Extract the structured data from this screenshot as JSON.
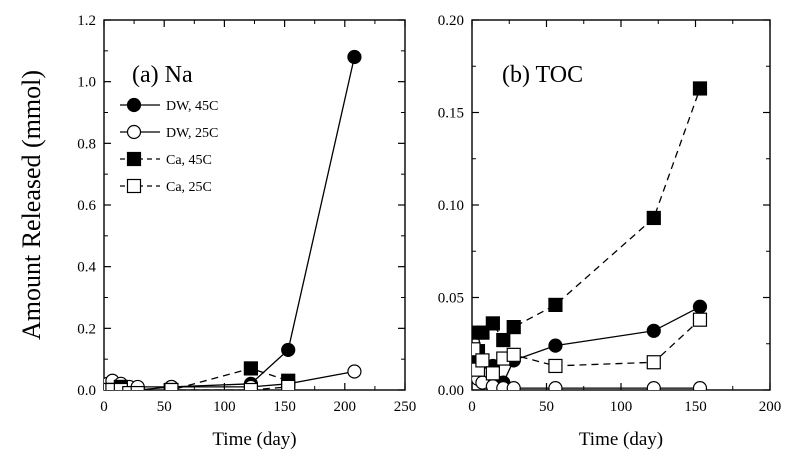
{
  "figure": {
    "ylabel": "Amount Released (mmol)"
  },
  "chart_data": [
    {
      "type": "line",
      "panel_label": "(a) Na",
      "xlabel": "Time (day)",
      "ylabel": "Amount Released (mmol)",
      "xlim": [
        0,
        250
      ],
      "ylim": [
        0,
        1.2
      ],
      "xticks": [
        0,
        50,
        100,
        150,
        200,
        250
      ],
      "yticks": [
        0.0,
        0.2,
        0.4,
        0.6,
        0.8,
        1.0,
        1.2
      ],
      "xtick_labels": [
        "0",
        "50",
        "100",
        "150",
        "200",
        "250"
      ],
      "ytick_labels": [
        "0.0",
        "0.2",
        "0.4",
        "0.6",
        "0.8",
        "1.0",
        "1.2"
      ],
      "legend_position": "upper-left",
      "series": [
        {
          "name": "DW, 45C",
          "marker": "filled-circle",
          "line": "solid",
          "x": [
            3,
            7,
            14,
            21,
            28,
            56,
            122,
            153,
            208
          ],
          "y": [
            0.01,
            0.01,
            0.01,
            0.0,
            0.0,
            0.01,
            0.02,
            0.13,
            1.08
          ]
        },
        {
          "name": "DW, 25C",
          "marker": "open-circle",
          "line": "solid",
          "x": [
            3,
            7,
            14,
            21,
            28,
            56,
            122,
            153,
            208
          ],
          "y": [
            0.02,
            0.03,
            0.02,
            0.01,
            0.01,
            0.01,
            0.01,
            0.02,
            0.06
          ]
        },
        {
          "name": "Ca, 45C",
          "marker": "filled-square",
          "line": "dashed",
          "x": [
            3,
            7,
            14,
            21,
            28,
            56,
            122,
            153
          ],
          "y": [
            0.0,
            0.0,
            0.01,
            -0.01,
            -0.01,
            0.0,
            0.07,
            0.03
          ]
        },
        {
          "name": "Ca, 25C",
          "marker": "open-square",
          "line": "dashed",
          "x": [
            3,
            7,
            14,
            21,
            28,
            56,
            122,
            153
          ],
          "y": [
            0.0,
            0.0,
            0.0,
            -0.01,
            -0.01,
            0.0,
            0.0,
            0.01
          ]
        }
      ]
    },
    {
      "type": "line",
      "panel_label": "(b) TOC",
      "xlabel": "Time (day)",
      "xlim": [
        0,
        200
      ],
      "ylim": [
        0,
        0.2
      ],
      "xticks": [
        0,
        50,
        100,
        150,
        200
      ],
      "yticks": [
        0.0,
        0.05,
        0.1,
        0.15,
        0.2
      ],
      "xtick_labels": [
        "0",
        "50",
        "100",
        "150",
        "200"
      ],
      "ytick_labels": [
        "0.00",
        "0.05",
        "0.10",
        "0.15",
        "0.20"
      ],
      "series": [
        {
          "name": "DW, 45C",
          "marker": "filled-circle",
          "line": "solid",
          "x": [
            1,
            4,
            7,
            14,
            21,
            28,
            56,
            122,
            153
          ],
          "y": [
            0.031,
            0.031,
            0.015,
            0.013,
            0.004,
            0.016,
            0.024,
            0.032,
            0.045
          ]
        },
        {
          "name": "DW, 25C",
          "marker": "open-circle",
          "line": "solid",
          "x": [
            1,
            4,
            7,
            14,
            21,
            28,
            56,
            122,
            153
          ],
          "y": [
            0.009,
            0.006,
            0.004,
            0.002,
            0.001,
            0.001,
            0.001,
            0.001,
            0.001
          ]
        },
        {
          "name": "Ca, 45C",
          "marker": "filled-square",
          "line": "dashed",
          "x": [
            1,
            4,
            7,
            14,
            21,
            28,
            56,
            122,
            153
          ],
          "y": [
            0.015,
            0.021,
            0.031,
            0.036,
            0.027,
            0.034,
            0.046,
            0.093,
            0.163
          ]
        },
        {
          "name": "Ca, 25C",
          "marker": "open-square",
          "line": "dashed",
          "x": [
            1,
            4,
            7,
            14,
            21,
            28,
            56,
            122,
            153
          ],
          "y": [
            0.022,
            0.011,
            0.016,
            0.009,
            0.017,
            0.019,
            0.013,
            0.015,
            0.038
          ]
        }
      ]
    }
  ]
}
